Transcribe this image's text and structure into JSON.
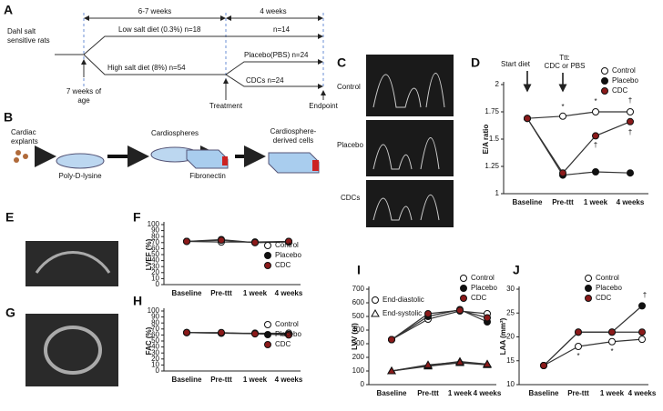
{
  "panel_labels": [
    "A",
    "B",
    "C",
    "D",
    "E",
    "F",
    "G",
    "H",
    "I",
    "J"
  ],
  "timeline": {
    "subject": [
      "Dahl salt",
      "sensitive rats"
    ],
    "period_1": "6-7 weeks",
    "period_2": "4 weeks",
    "low_salt": "Low salt diet (0.3%) n=18",
    "low_n": "n=14",
    "high_salt": "High salt diet (8%) n=54",
    "placebo": "Placebo(PBS) n=24",
    "cdcs": "CDCs n=24",
    "age": [
      "7 weeks of",
      "age"
    ],
    "treatment": "Treatment",
    "endpoint": "Endpoint"
  },
  "protocol": {
    "explants": [
      "Cardiac",
      "explants"
    ],
    "poly": "Poly-D-lysine",
    "spheres": "Cardiospheres",
    "fibro": "Fibronectin",
    "cdc": [
      "Cardiosphere-",
      "derived cells"
    ]
  },
  "doppler": [
    "Control",
    "Placebo",
    "CDCs"
  ],
  "chart_data": [
    {
      "type": "line",
      "y_label": "E/A ratio",
      "categories": [
        "Baseline",
        "Pre-ttt",
        "1 week",
        "4 weeks"
      ],
      "series": [
        {
          "name": "Control",
          "color": "#ffffff",
          "values": [
            1.69,
            1.71,
            1.75,
            1.75
          ]
        },
        {
          "name": "Placebo",
          "color": "#111111",
          "values": [
            1.69,
            1.17,
            1.2,
            1.19
          ]
        },
        {
          "name": "CDC",
          "color": "#8b1a1a",
          "values": [
            1.69,
            1.19,
            1.53,
            1.66
          ]
        }
      ],
      "ylim": [
        1,
        2
      ],
      "yticks": [
        1,
        1.25,
        1.5,
        1.75,
        2
      ],
      "annotations": [
        "Start diet",
        "Ttt:",
        "CDC or PBS",
        "*",
        "*",
        "†",
        "†",
        "†"
      ]
    },
    {
      "type": "line",
      "y_label": "LVEF (%)",
      "categories": [
        "Baseline",
        "Pre-ttt",
        "1 week",
        "4 weeks"
      ],
      "series": [
        {
          "name": "Control",
          "color": "#ffffff",
          "values": [
            72,
            71,
            71,
            72
          ]
        },
        {
          "name": "Placebo",
          "color": "#111111",
          "values": [
            72,
            75,
            70,
            71
          ]
        },
        {
          "name": "CDC",
          "color": "#8b1a1a",
          "values": [
            72,
            74,
            70,
            72
          ]
        }
      ],
      "ylim": [
        0,
        100
      ],
      "yticks": [
        0,
        10,
        20,
        30,
        40,
        50,
        60,
        70,
        80,
        90,
        100
      ]
    },
    {
      "type": "line",
      "y_label": "FAC (%)",
      "categories": [
        "Baseline",
        "Pre-ttt",
        "1 week",
        "4 weeks"
      ],
      "series": [
        {
          "name": "Control",
          "color": "#ffffff",
          "values": [
            64,
            63,
            63,
            63
          ]
        },
        {
          "name": "Placebo",
          "color": "#111111",
          "values": [
            64,
            63,
            62,
            61
          ]
        },
        {
          "name": "CDC",
          "color": "#8b1a1a",
          "values": [
            64,
            64,
            62,
            60
          ]
        }
      ],
      "ylim": [
        0,
        100
      ],
      "yticks": [
        0,
        10,
        20,
        30,
        40,
        50,
        60,
        70,
        80,
        90,
        100
      ]
    },
    {
      "type": "line",
      "y_label": "LVV (ul)",
      "categories": [
        "Baseline",
        "Pre-ttt",
        "1 week",
        "4 weeks"
      ],
      "marker_legend": [
        "End-diastolic",
        "End-systolic"
      ],
      "series": [
        {
          "name": "Control",
          "color": "#ffffff",
          "values": [
            330,
            480,
            540,
            520
          ],
          "systolic": [
            100,
            140,
            170,
            150
          ]
        },
        {
          "name": "Placebo",
          "color": "#111111",
          "values": [
            330,
            500,
            550,
            460
          ],
          "systolic": [
            100,
            135,
            160,
            145
          ]
        },
        {
          "name": "CDC",
          "color": "#8b1a1a",
          "values": [
            330,
            520,
            545,
            490
          ],
          "systolic": [
            100,
            145,
            165,
            150
          ]
        }
      ],
      "ylim": [
        0,
        700
      ],
      "yticks": [
        0,
        100,
        200,
        300,
        400,
        500,
        600,
        700
      ]
    },
    {
      "type": "line",
      "y_label": "LAA (mm²)",
      "categories": [
        "Baseline",
        "Pre-ttt",
        "1 week",
        "4 weeks"
      ],
      "series": [
        {
          "name": "Control",
          "color": "#ffffff",
          "values": [
            14,
            18,
            19,
            19.5
          ]
        },
        {
          "name": "Placebo",
          "color": "#111111",
          "values": [
            14,
            21,
            21,
            26.5
          ]
        },
        {
          "name": "CDC",
          "color": "#8b1a1a",
          "values": [
            14,
            21,
            21,
            21
          ]
        }
      ],
      "ylim": [
        10,
        30
      ],
      "yticks": [
        10,
        15,
        20,
        25,
        30
      ],
      "annotations": [
        "†",
        "*",
        "*"
      ]
    }
  ]
}
